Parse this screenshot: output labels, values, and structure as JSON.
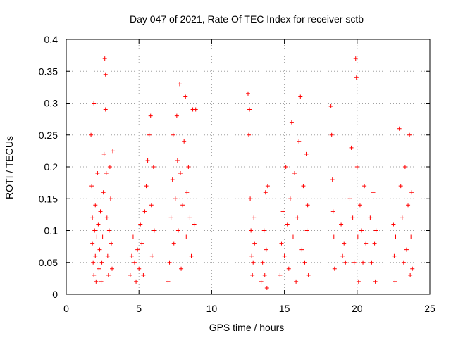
{
  "chart_data": {
    "type": "scatter",
    "title": "Day 047 of 2021, Rate Of TEC Index for receiver sctb",
    "xlabel": "GPS time / hours",
    "ylabel": "ROTI / TECUs",
    "xlim": [
      0,
      25
    ],
    "ylim": [
      0,
      0.4
    ],
    "xticks": [
      0,
      5,
      10,
      15,
      20,
      25
    ],
    "xtick_labels": [
      "0",
      "5",
      "10",
      "15",
      "20",
      "25"
    ],
    "yticks": [
      0,
      0.05,
      0.1,
      0.15,
      0.2,
      0.25,
      0.3,
      0.35,
      0.4
    ],
    "ytick_labels": [
      "0",
      "0.05",
      "0.1",
      "0.15",
      "0.2",
      "0.25",
      "0.3",
      "0.35",
      "0.4"
    ],
    "grid": true,
    "marker": "+",
    "color": "#ff0000",
    "series": [
      {
        "name": "ROTI",
        "points": [
          [
            1.7,
            0.25
          ],
          [
            1.75,
            0.17
          ],
          [
            1.8,
            0.12
          ],
          [
            1.8,
            0.08
          ],
          [
            1.85,
            0.05
          ],
          [
            1.9,
            0.03
          ],
          [
            1.9,
            0.3
          ],
          [
            1.95,
            0.1
          ],
          [
            2.0,
            0.14
          ],
          [
            2.0,
            0.06
          ],
          [
            2.05,
            0.02
          ],
          [
            2.1,
            0.09
          ],
          [
            2.15,
            0.19
          ],
          [
            2.2,
            0.11
          ],
          [
            2.25,
            0.04
          ],
          [
            2.3,
            0.07
          ],
          [
            2.35,
            0.13
          ],
          [
            2.4,
            0.02
          ],
          [
            2.45,
            0.05
          ],
          [
            2.5,
            0.09
          ],
          [
            2.55,
            0.16
          ],
          [
            2.6,
            0.22
          ],
          [
            2.65,
            0.37
          ],
          [
            2.7,
            0.345
          ],
          [
            2.7,
            0.29
          ],
          [
            2.75,
            0.19
          ],
          [
            2.8,
            0.12
          ],
          [
            2.85,
            0.06
          ],
          [
            2.9,
            0.03
          ],
          [
            2.95,
            0.1
          ],
          [
            3.0,
            0.2
          ],
          [
            3.05,
            0.15
          ],
          [
            3.1,
            0.08
          ],
          [
            3.15,
            0.04
          ],
          [
            3.2,
            0.225
          ],
          [
            4.4,
            0.03
          ],
          [
            4.5,
            0.06
          ],
          [
            4.6,
            0.09
          ],
          [
            4.7,
            0.05
          ],
          [
            4.8,
            0.02
          ],
          [
            4.9,
            0.07
          ],
          [
            5.0,
            0.04
          ],
          [
            5.1,
            0.11
          ],
          [
            5.2,
            0.08
          ],
          [
            5.3,
            0.03
          ],
          [
            5.4,
            0.13
          ],
          [
            5.5,
            0.17
          ],
          [
            5.6,
            0.21
          ],
          [
            5.7,
            0.25
          ],
          [
            5.8,
            0.28
          ],
          [
            5.85,
            0.14
          ],
          [
            5.9,
            0.06
          ],
          [
            6.0,
            0.2
          ],
          [
            6.05,
            0.1
          ],
          [
            7.0,
            0.02
          ],
          [
            7.1,
            0.05
          ],
          [
            7.2,
            0.12
          ],
          [
            7.3,
            0.18
          ],
          [
            7.35,
            0.25
          ],
          [
            7.4,
            0.08
          ],
          [
            7.5,
            0.15
          ],
          [
            7.6,
            0.28
          ],
          [
            7.65,
            0.21
          ],
          [
            7.7,
            0.1
          ],
          [
            7.8,
            0.33
          ],
          [
            7.85,
            0.19
          ],
          [
            7.9,
            0.04
          ],
          [
            8.0,
            0.14
          ],
          [
            8.1,
            0.24
          ],
          [
            8.2,
            0.31
          ],
          [
            8.25,
            0.09
          ],
          [
            8.3,
            0.16
          ],
          [
            8.4,
            0.2
          ],
          [
            8.5,
            0.12
          ],
          [
            8.6,
            0.06
          ],
          [
            8.7,
            0.29
          ],
          [
            8.8,
            0.11
          ],
          [
            8.9,
            0.29
          ],
          [
            12.5,
            0.315
          ],
          [
            12.55,
            0.25
          ],
          [
            12.6,
            0.29
          ],
          [
            12.65,
            0.15
          ],
          [
            12.7,
            0.1
          ],
          [
            12.75,
            0.06
          ],
          [
            12.8,
            0.03
          ],
          [
            12.85,
            0.05
          ],
          [
            12.9,
            0.12
          ],
          [
            12.95,
            0.08
          ],
          [
            13.4,
            0.02
          ],
          [
            13.5,
            0.05
          ],
          [
            13.6,
            0.1
          ],
          [
            13.65,
            0.03
          ],
          [
            13.7,
            0.16
          ],
          [
            13.75,
            0.07
          ],
          [
            13.8,
            0.01
          ],
          [
            13.85,
            0.17
          ],
          [
            14.7,
            0.03
          ],
          [
            14.8,
            0.08
          ],
          [
            14.9,
            0.13
          ],
          [
            15.0,
            0.06
          ],
          [
            15.1,
            0.2
          ],
          [
            15.2,
            0.11
          ],
          [
            15.3,
            0.04
          ],
          [
            15.4,
            0.15
          ],
          [
            15.5,
            0.27
          ],
          [
            15.6,
            0.09
          ],
          [
            15.7,
            0.19
          ],
          [
            15.8,
            0.02
          ],
          [
            15.9,
            0.12
          ],
          [
            16.0,
            0.24
          ],
          [
            16.1,
            0.31
          ],
          [
            16.2,
            0.07
          ],
          [
            16.3,
            0.17
          ],
          [
            16.4,
            0.05
          ],
          [
            16.5,
            0.22
          ],
          [
            16.55,
            0.1
          ],
          [
            16.6,
            0.14
          ],
          [
            16.65,
            0.03
          ],
          [
            18.2,
            0.295
          ],
          [
            18.25,
            0.25
          ],
          [
            18.3,
            0.18
          ],
          [
            18.35,
            0.13
          ],
          [
            18.4,
            0.09
          ],
          [
            18.45,
            0.04
          ],
          [
            18.9,
            0.11
          ],
          [
            19.0,
            0.06
          ],
          [
            19.1,
            0.08
          ],
          [
            19.2,
            0.05
          ],
          [
            19.5,
            0.15
          ],
          [
            19.6,
            0.23
          ],
          [
            19.7,
            0.12
          ],
          [
            19.8,
            0.05
          ],
          [
            19.9,
            0.37
          ],
          [
            19.95,
            0.34
          ],
          [
            20.0,
            0.2
          ],
          [
            20.05,
            0.09
          ],
          [
            20.1,
            0.02
          ],
          [
            20.2,
            0.14
          ],
          [
            20.3,
            0.1
          ],
          [
            20.4,
            0.05
          ],
          [
            20.5,
            0.17
          ],
          [
            20.6,
            0.08
          ],
          [
            20.9,
            0.12
          ],
          [
            21.0,
            0.05
          ],
          [
            21.1,
            0.16
          ],
          [
            21.2,
            0.08
          ],
          [
            21.25,
            0.02
          ],
          [
            21.3,
            0.1
          ],
          [
            22.5,
            0.11
          ],
          [
            22.55,
            0.06
          ],
          [
            22.6,
            0.02
          ],
          [
            22.65,
            0.09
          ],
          [
            22.9,
            0.26
          ],
          [
            23.0,
            0.17
          ],
          [
            23.1,
            0.12
          ],
          [
            23.2,
            0.05
          ],
          [
            23.3,
            0.2
          ],
          [
            23.4,
            0.07
          ],
          [
            23.5,
            0.14
          ],
          [
            23.6,
            0.25
          ],
          [
            23.65,
            0.03
          ],
          [
            23.7,
            0.09
          ],
          [
            23.75,
            0.16
          ],
          [
            23.8,
            0.04
          ]
        ]
      }
    ]
  }
}
